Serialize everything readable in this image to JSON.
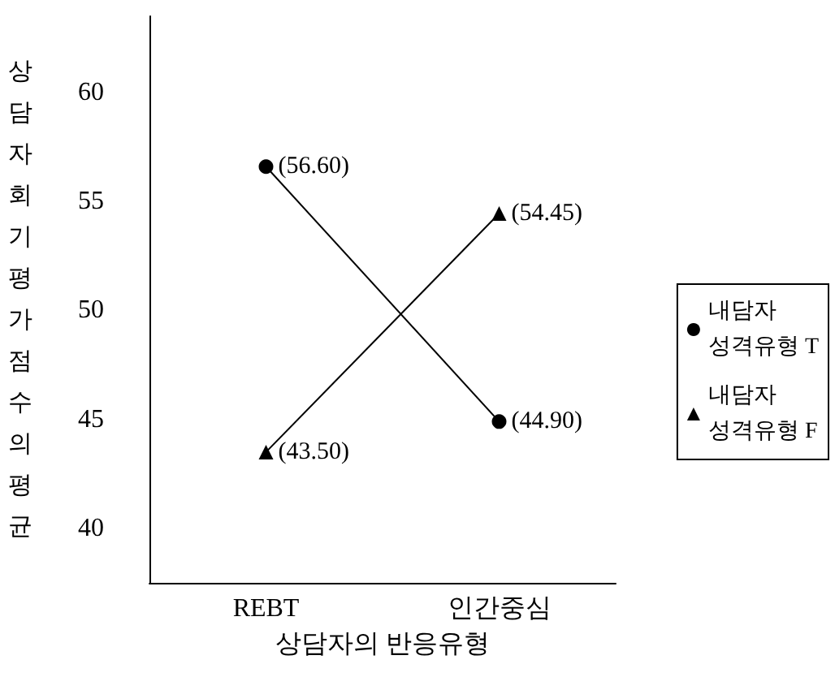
{
  "chart_data": {
    "type": "line",
    "xlabel": "상담자의 반응유형",
    "ylabel": "상담자회기평가점수의평균",
    "categories": [
      "REBT",
      "인간중심"
    ],
    "series": [
      {
        "name": "내담자 성격유형 T",
        "color": "#000000",
        "marker": "circle",
        "values": [
          56.6,
          44.9
        ],
        "value_labels": [
          "(56.60)",
          "(44.90)"
        ]
      },
      {
        "name": "내담자 성격유형 F",
        "color": "#000000",
        "marker": "triangle",
        "values": [
          43.5,
          54.45
        ],
        "value_labels": [
          "(43.50)",
          "(54.45)"
        ]
      }
    ],
    "ylim": [
      37.5,
      63.5
    ],
    "yticks": [
      40,
      45,
      50,
      55,
      60
    ],
    "grid": false,
    "legend": "right"
  }
}
